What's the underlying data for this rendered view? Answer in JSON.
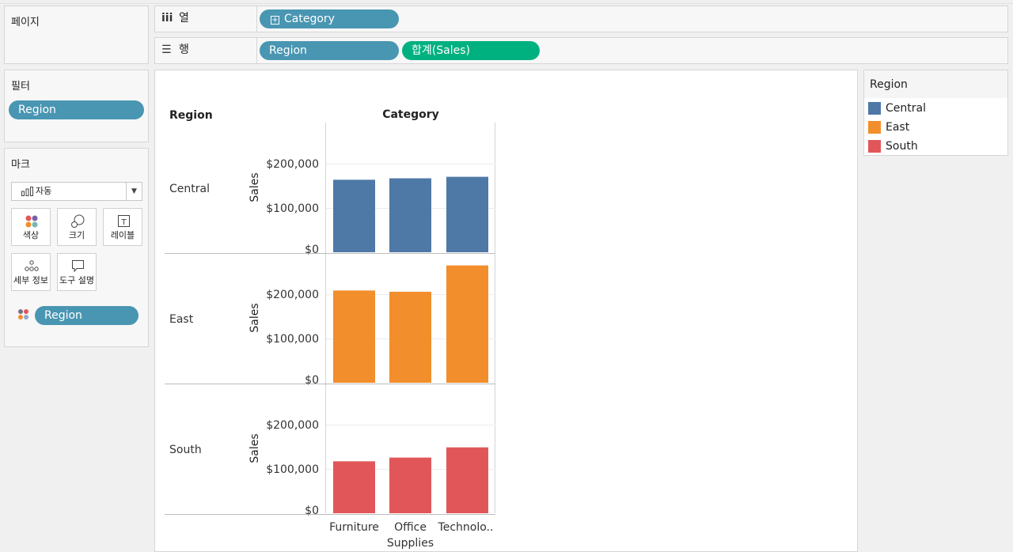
{
  "pages": {
    "title": "페이지"
  },
  "filters": {
    "title": "필터",
    "items": [
      {
        "label": "Region"
      }
    ]
  },
  "marks": {
    "title": "마크",
    "type_value": "자동",
    "buttons": [
      {
        "label": "색상",
        "icon": "color-icon"
      },
      {
        "label": "크기",
        "icon": "size-icon"
      },
      {
        "label": "레이블",
        "icon": "label-icon"
      },
      {
        "label": "세부 정보",
        "icon": "detail-icon"
      },
      {
        "label": "도구 설명",
        "icon": "tooltip-icon"
      }
    ],
    "color_field": "Region"
  },
  "shelves": {
    "columns": {
      "label": "열",
      "pills": [
        "Category"
      ]
    },
    "rows": {
      "label": "행",
      "pills": [
        "Region",
        "합계(Sales)"
      ]
    }
  },
  "legend": {
    "title": "Region",
    "items": [
      {
        "label": "Central",
        "color": "#4e79a7"
      },
      {
        "label": "East",
        "color": "#f28e2b"
      },
      {
        "label": "South",
        "color": "#e15759"
      }
    ]
  },
  "view": {
    "row_header": "Region",
    "column_header": "Category",
    "y_axis_label": "Sales",
    "y_ticks": [
      "$0",
      "$100,000",
      "$200,000"
    ]
  },
  "chart_data": {
    "type": "bar",
    "categories": [
      "Furniture",
      "Office Supplies",
      "Technolo.."
    ],
    "category_display": [
      [
        "Furniture"
      ],
      [
        "Office",
        "Supplies"
      ],
      [
        "Technolo.."
      ]
    ],
    "series": [
      {
        "name": "Central",
        "values": [
          163800,
          167000,
          170400
        ],
        "color": "#4e79a7"
      },
      {
        "name": "East",
        "values": [
          208300,
          205500,
          264900
        ],
        "color": "#f28e2b"
      },
      {
        "name": "South",
        "values": [
          117300,
          125700,
          148800
        ],
        "color": "#e15759"
      }
    ],
    "ylabel": "Sales",
    "ylim": [
      0,
      280000
    ],
    "y_ticks": [
      0,
      100000,
      200000
    ],
    "grid": true
  }
}
